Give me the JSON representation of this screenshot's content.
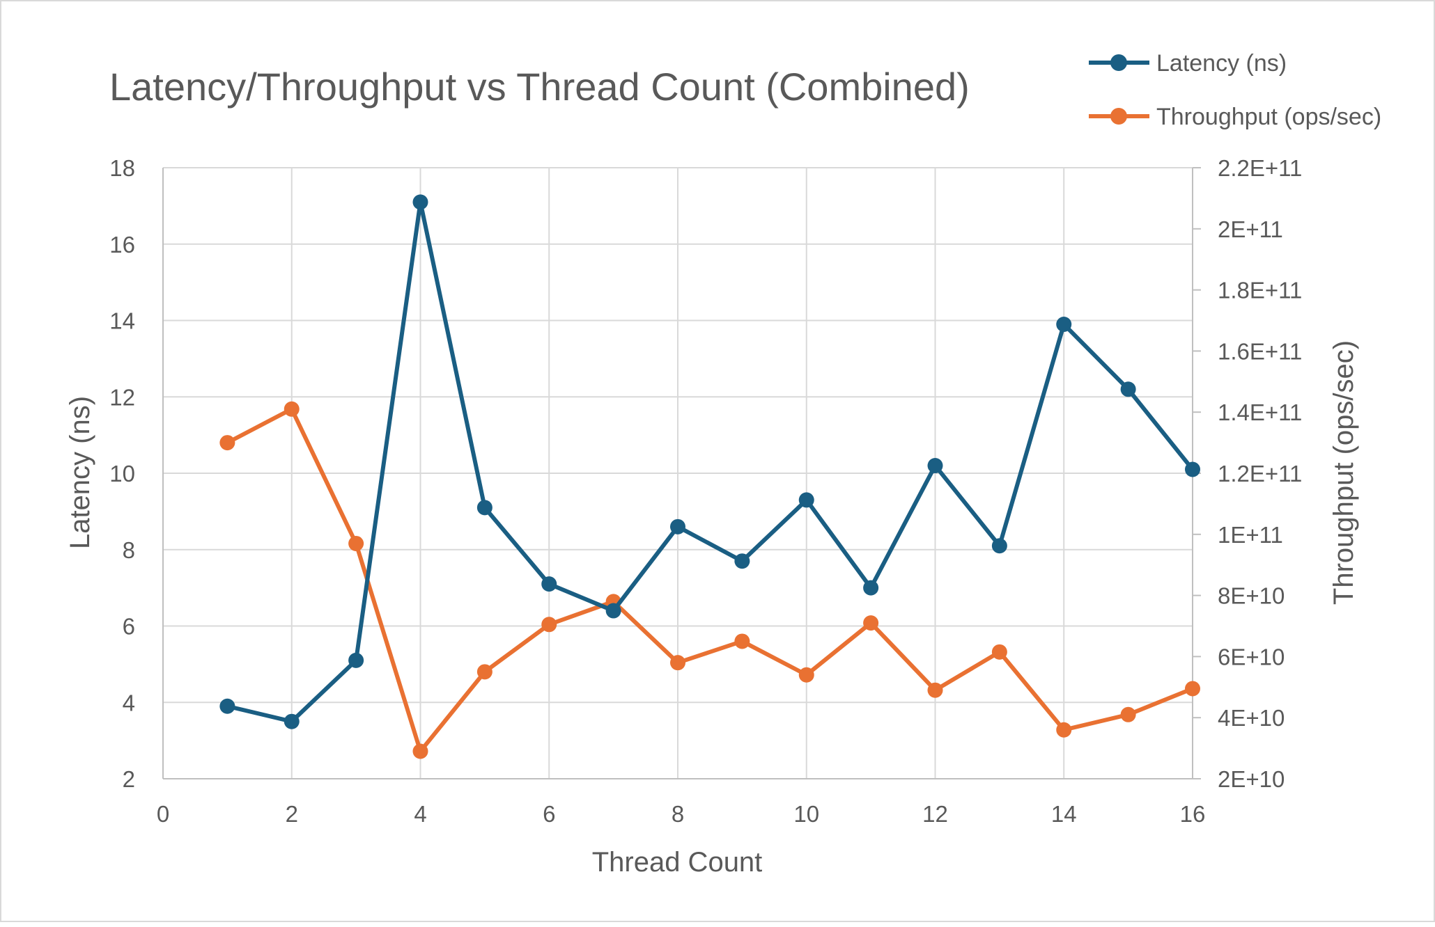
{
  "chart_data": {
    "type": "line",
    "title": "Latency/Throughput vs Thread Count (Combined)",
    "xlabel": "Thread Count",
    "ylabel": "Latency (ns)",
    "y2label": "Throughput (ops/sec)",
    "xlim": [
      0,
      16
    ],
    "ylim": [
      2,
      18
    ],
    "y2lim": [
      20000000000,
      220000000000
    ],
    "x_ticks": [
      "0",
      "2",
      "4",
      "6",
      "8",
      "10",
      "12",
      "14",
      "16"
    ],
    "y_ticks": [
      "2",
      "4",
      "6",
      "8",
      "10",
      "12",
      "14",
      "16",
      "18"
    ],
    "y2_ticks": [
      "2E+10",
      "4E+10",
      "6E+10",
      "8E+10",
      "1E+11",
      "1.2E+11",
      "1.4E+11",
      "1.6E+11",
      "1.8E+11",
      "2E+11",
      "2.2E+11"
    ],
    "x": [
      1,
      2,
      3,
      4,
      5,
      6,
      7,
      8,
      9,
      10,
      11,
      12,
      13,
      14,
      15,
      16
    ],
    "grid": true,
    "legend_position": "top-right",
    "series": [
      {
        "name": "Latency (ns)",
        "axis": "left",
        "color": "#1a5e83",
        "values": [
          3.9,
          3.5,
          5.1,
          17.1,
          9.1,
          7.1,
          6.4,
          8.6,
          7.7,
          9.3,
          7.0,
          10.2,
          8.1,
          13.9,
          12.2,
          10.1
        ]
      },
      {
        "name": "Throughput (ops/sec)",
        "axis": "right",
        "color": "#e97132",
        "values": [
          130000000000,
          141000000000,
          97000000000,
          29000000000,
          55000000000,
          70500000000,
          78000000000,
          58000000000,
          65000000000,
          54000000000,
          71000000000,
          49000000000,
          61500000000,
          36000000000,
          41000000000,
          49500000000
        ]
      }
    ]
  }
}
